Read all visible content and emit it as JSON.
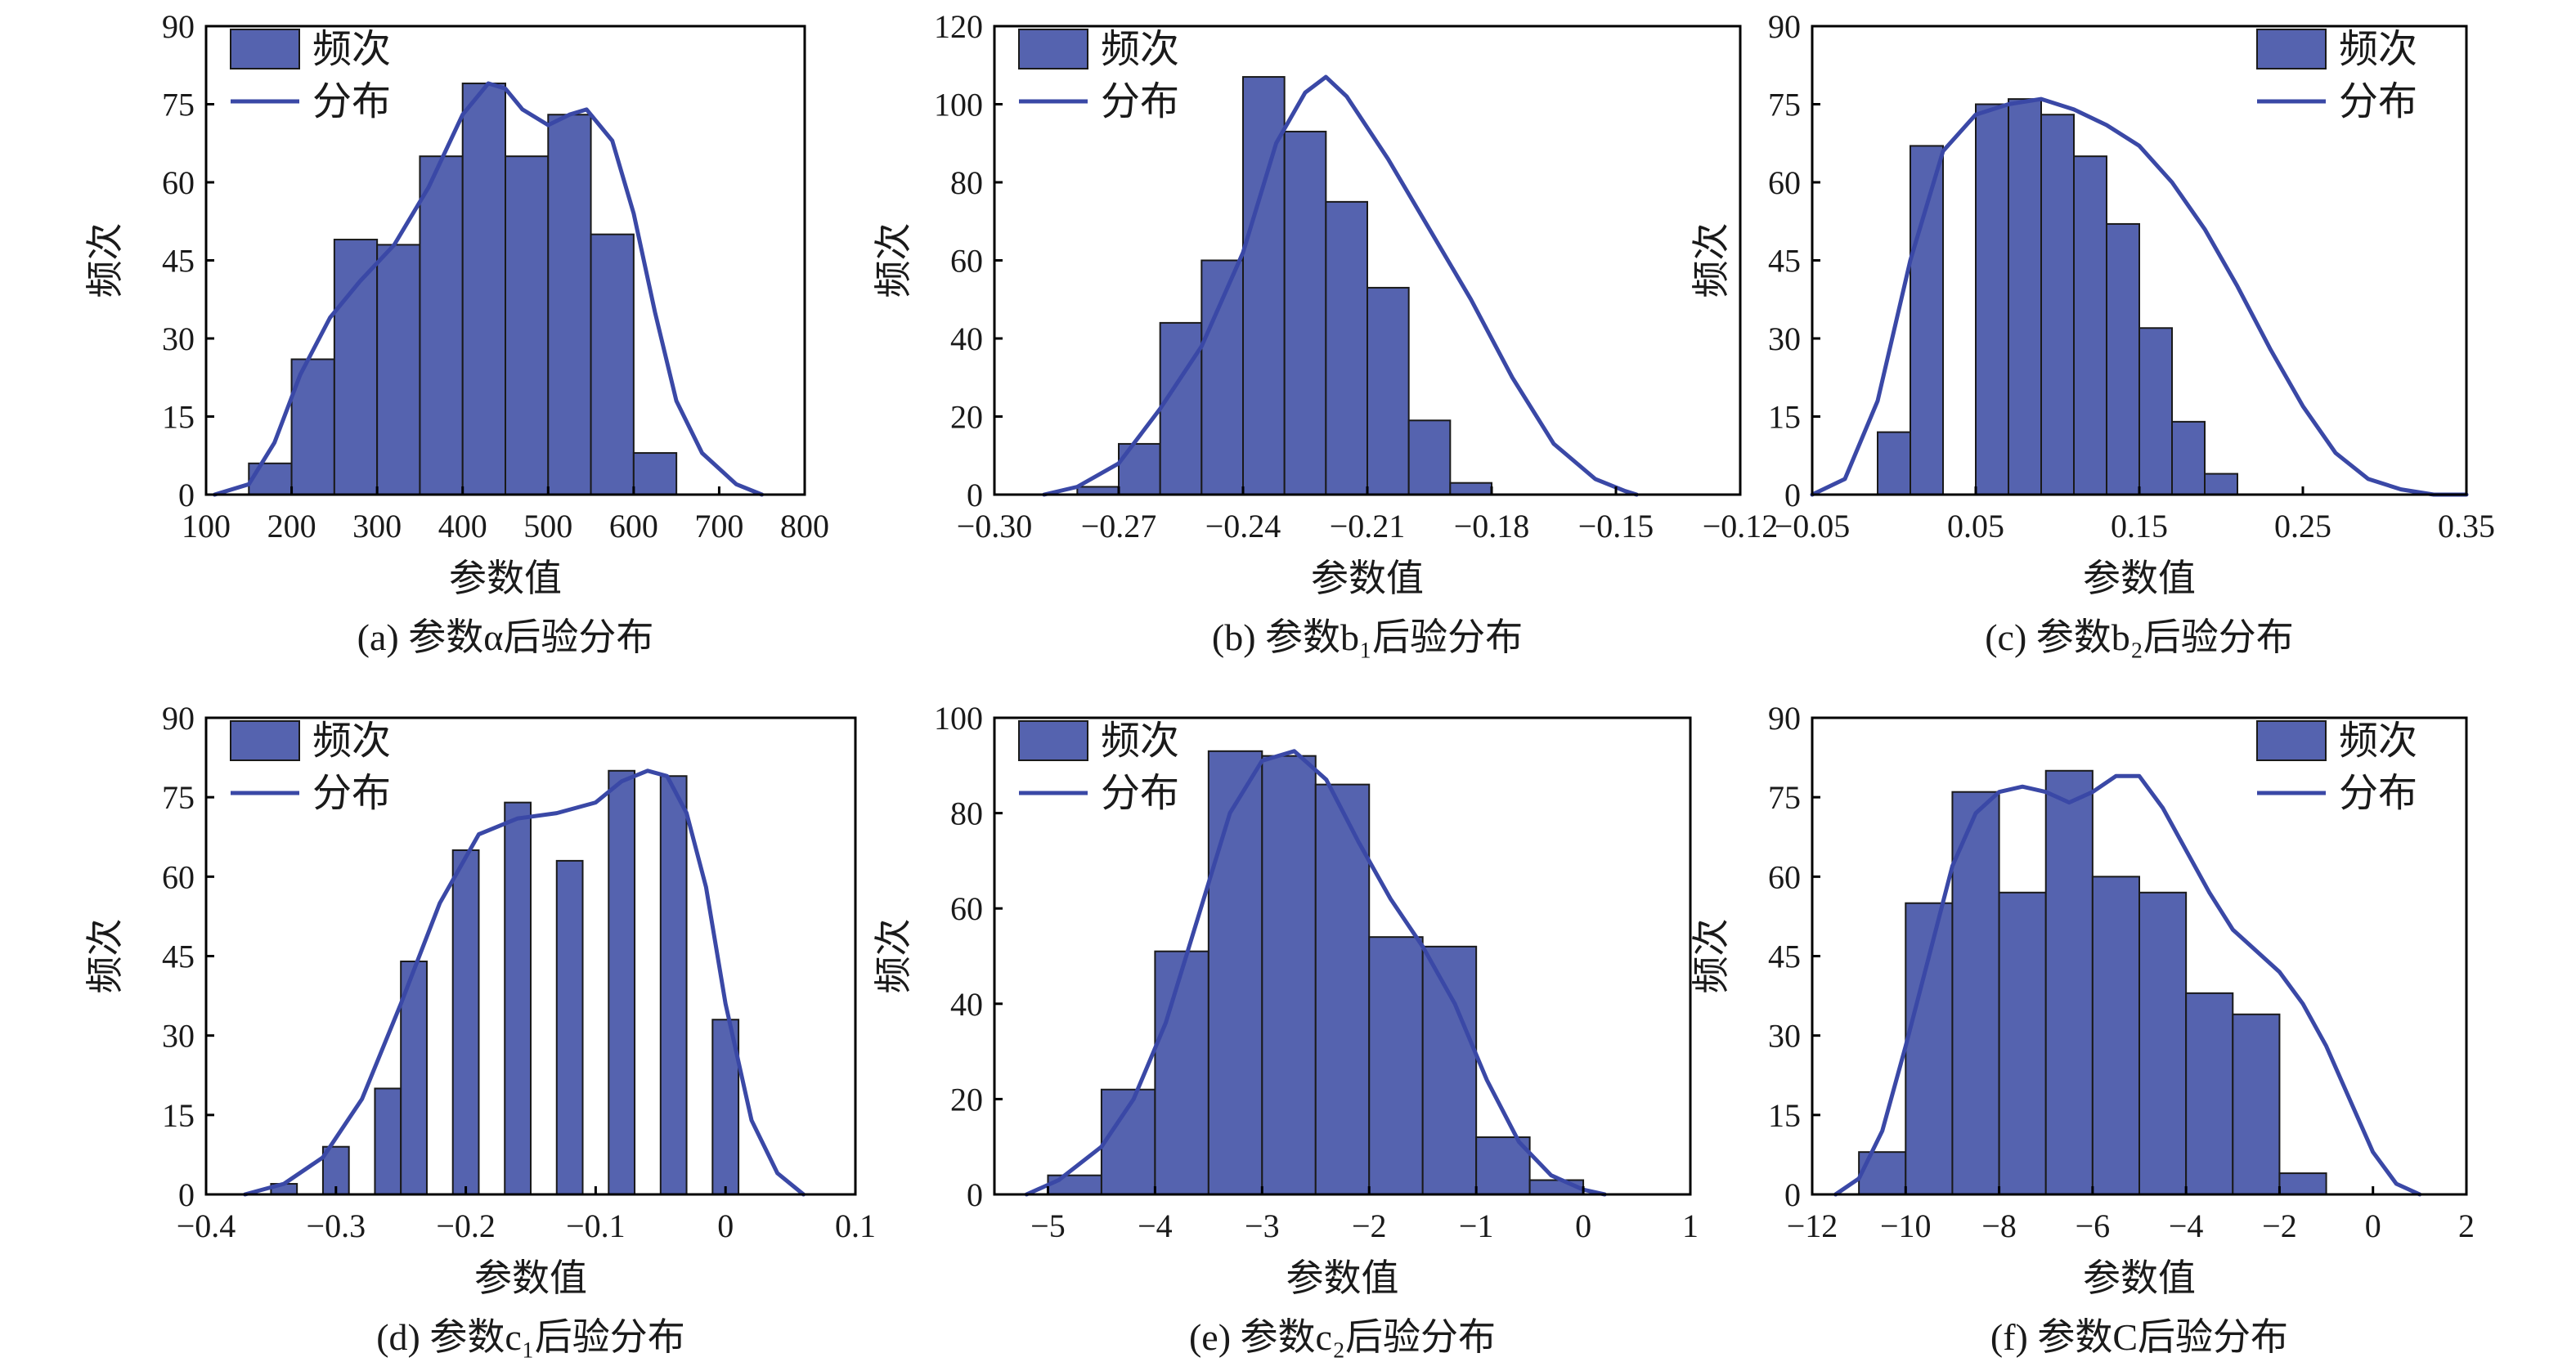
{
  "colors": {
    "bar": "#5563AF",
    "curve": "#3A48A6"
  },
  "chart_data": [
    {
      "type": "bar",
      "panel_caption": "(a) 参数α后验分布",
      "xlabel": "参数值",
      "ylabel": "频次",
      "legend": {
        "bar_label": "频次",
        "curve_label": "分布",
        "position": "top-left"
      },
      "xlim": [
        100,
        800
      ],
      "ylim": [
        0,
        90
      ],
      "x_ticks": [
        100,
        200,
        300,
        400,
        500,
        600,
        700,
        800
      ],
      "x_tick_labels": [
        "100",
        "200",
        "300",
        "400",
        "500",
        "600",
        "700",
        "800"
      ],
      "y_ticks": [
        0,
        15,
        30,
        45,
        60,
        75,
        90
      ],
      "y_tick_labels": [
        "0",
        "15",
        "30",
        "45",
        "60",
        "75",
        "90"
      ],
      "bin_edges": [
        150,
        200,
        250,
        300,
        350,
        400,
        450,
        500,
        550,
        600,
        650,
        700
      ],
      "values": [
        6,
        26,
        49,
        48,
        65,
        79,
        65,
        73,
        50,
        8,
        0
      ],
      "curve": {
        "x": [
          110,
          150,
          180,
          210,
          245,
          280,
          320,
          360,
          400,
          430,
          450,
          470,
          500,
          525,
          545,
          575,
          600,
          625,
          650,
          680,
          720,
          750
        ],
        "y": [
          0,
          2,
          10,
          23,
          34,
          41,
          48,
          59,
          73,
          79,
          78,
          74,
          71,
          73,
          74,
          68,
          54,
          35,
          18,
          8,
          2,
          0
        ]
      }
    },
    {
      "type": "bar",
      "panel_caption": "(b) 参数b₁后验分布",
      "xlabel": "参数值",
      "ylabel": "频次",
      "legend": {
        "bar_label": "频次",
        "curve_label": "分布",
        "position": "top-left"
      },
      "xlim": [
        -0.3,
        -0.12
      ],
      "ylim": [
        0,
        120
      ],
      "x_ticks": [
        -0.3,
        -0.27,
        -0.24,
        -0.21,
        -0.18,
        -0.15,
        -0.12
      ],
      "x_tick_labels": [
        "−0.30",
        "−0.27",
        "−0.24",
        "−0.21",
        "−0.18",
        "−0.15",
        "−0.12"
      ],
      "y_ticks": [
        0,
        20,
        40,
        60,
        80,
        100,
        120
      ],
      "y_tick_labels": [
        "0",
        "20",
        "40",
        "60",
        "80",
        "100",
        "120"
      ],
      "bin_edges": [
        -0.29,
        -0.28,
        -0.27,
        -0.26,
        -0.25,
        -0.24,
        -0.23,
        -0.22,
        -0.21,
        -0.2,
        -0.19,
        -0.18,
        -0.17,
        -0.16,
        -0.15,
        -0.14
      ],
      "values": [
        0,
        2,
        13,
        44,
        60,
        107,
        93,
        75,
        53,
        19,
        3,
        0,
        0,
        0,
        0
      ],
      "curve": {
        "x": [
          -0.288,
          -0.28,
          -0.27,
          -0.26,
          -0.25,
          -0.24,
          -0.232,
          -0.225,
          -0.22,
          -0.215,
          -0.205,
          -0.195,
          -0.185,
          -0.175,
          -0.165,
          -0.155,
          -0.148,
          -0.145
        ],
        "y": [
          0,
          2,
          8,
          22,
          38,
          62,
          90,
          103,
          107,
          102,
          86,
          68,
          50,
          30,
          13,
          4,
          1,
          0
        ]
      }
    },
    {
      "type": "bar",
      "panel_caption": "(c) 参数b₂后验分布",
      "xlabel": "参数值",
      "ylabel": "频次",
      "legend": {
        "bar_label": "频次",
        "curve_label": "分布",
        "position": "top-right"
      },
      "xlim": [
        -0.05,
        0.35
      ],
      "ylim": [
        0,
        90
      ],
      "x_ticks": [
        -0.05,
        0.05,
        0.15,
        0.25,
        0.35
      ],
      "x_tick_labels": [
        "−0.05",
        "0.05",
        "0.15",
        "0.25",
        "0.35"
      ],
      "y_ticks": [
        0,
        15,
        30,
        45,
        60,
        75,
        90
      ],
      "y_tick_labels": [
        "0",
        "15",
        "30",
        "45",
        "60",
        "75",
        "90"
      ],
      "bin_edges": [
        -0.05,
        -0.03,
        -0.01,
        0.01,
        0.03,
        0.05,
        0.07,
        0.09,
        0.11,
        0.13,
        0.15,
        0.17,
        0.19,
        0.21,
        0.23,
        0.25,
        0.27,
        0.29,
        0.31,
        0.33,
        0.35
      ],
      "values": [
        0,
        0,
        12,
        67,
        0,
        75,
        76,
        73,
        65,
        52,
        32,
        14,
        4,
        0,
        0,
        0,
        0,
        0,
        0,
        0
      ],
      "curve": {
        "x": [
          -0.05,
          -0.03,
          -0.01,
          0.01,
          0.03,
          0.05,
          0.07,
          0.09,
          0.11,
          0.13,
          0.15,
          0.17,
          0.19,
          0.21,
          0.23,
          0.25,
          0.27,
          0.29,
          0.31,
          0.33,
          0.35
        ],
        "y": [
          0,
          3,
          18,
          45,
          66,
          73,
          75,
          76,
          74,
          71,
          67,
          60,
          51,
          40,
          28,
          17,
          8,
          3,
          1,
          0,
          0
        ]
      }
    },
    {
      "type": "bar",
      "panel_caption": "(d) 参数c₁后验分布",
      "xlabel": "参数值",
      "ylabel": "频次",
      "legend": {
        "bar_label": "频次",
        "curve_label": "分布",
        "position": "top-left"
      },
      "xlim": [
        -0.4,
        0.1
      ],
      "ylim": [
        0,
        90
      ],
      "x_ticks": [
        -0.4,
        -0.3,
        -0.2,
        -0.1,
        0,
        0.1
      ],
      "x_tick_labels": [
        "−0.4",
        "−0.3",
        "−0.2",
        "−0.1",
        "0",
        "0.1"
      ],
      "y_ticks": [
        0,
        15,
        30,
        45,
        60,
        75,
        90
      ],
      "y_tick_labels": [
        "0",
        "15",
        "30",
        "45",
        "60",
        "75",
        "90"
      ],
      "bin_edges": [
        -0.39,
        -0.37,
        -0.35,
        -0.33,
        -0.31,
        -0.29,
        -0.27,
        -0.25,
        -0.23,
        -0.21,
        -0.19,
        -0.17,
        -0.15,
        -0.13,
        -0.11,
        -0.09,
        -0.07,
        -0.05,
        -0.03,
        -0.01,
        0.01,
        0.03
      ],
      "values": [
        0,
        0,
        2,
        0,
        9,
        0,
        20,
        44,
        0,
        65,
        0,
        74,
        0,
        63,
        0,
        80,
        0,
        79,
        0,
        33,
        0
      ],
      "curve": {
        "x": [
          -0.37,
          -0.34,
          -0.31,
          -0.28,
          -0.25,
          -0.22,
          -0.19,
          -0.16,
          -0.13,
          -0.1,
          -0.08,
          -0.06,
          -0.045,
          -0.03,
          -0.015,
          0,
          0.02,
          0.04,
          0.06
        ],
        "y": [
          0,
          2,
          7,
          18,
          36,
          55,
          68,
          71,
          72,
          74,
          78,
          80,
          79,
          72,
          58,
          36,
          14,
          4,
          0
        ]
      }
    },
    {
      "type": "bar",
      "panel_caption": "(e) 参数c₂后验分布",
      "xlabel": "参数值",
      "ylabel": "频次",
      "legend": {
        "bar_label": "频次",
        "curve_label": "分布",
        "position": "top-left"
      },
      "xlim": [
        -5.5,
        1
      ],
      "ylim": [
        0,
        100
      ],
      "x_ticks": [
        -5,
        -4,
        -3,
        -2,
        -1,
        0,
        1
      ],
      "x_tick_labels": [
        "−5",
        "−4",
        "−3",
        "−2",
        "−1",
        "0",
        "1"
      ],
      "y_ticks": [
        0,
        20,
        40,
        60,
        80,
        100
      ],
      "y_tick_labels": [
        "0",
        "20",
        "40",
        "60",
        "80",
        "100"
      ],
      "bin_edges": [
        -5.0,
        -4.5,
        -4.0,
        -3.5,
        -3.0,
        -2.5,
        -2.0,
        -1.5,
        -1.0,
        -0.5,
        0.0
      ],
      "values": [
        4,
        22,
        51,
        93,
        92,
        86,
        54,
        52,
        12,
        3
      ],
      "curve": {
        "x": [
          -5.2,
          -4.9,
          -4.5,
          -4.2,
          -3.9,
          -3.6,
          -3.3,
          -3.0,
          -2.7,
          -2.4,
          -2.1,
          -1.8,
          -1.5,
          -1.2,
          -0.9,
          -0.6,
          -0.3,
          0.0,
          0.2
        ],
        "y": [
          0,
          3,
          10,
          20,
          36,
          58,
          80,
          91,
          93,
          87,
          74,
          62,
          52,
          40,
          24,
          11,
          4,
          1,
          0
        ]
      }
    },
    {
      "type": "bar",
      "panel_caption": "(f) 参数C后验分布",
      "xlabel": "参数值",
      "ylabel": "频次",
      "legend": {
        "bar_label": "频次",
        "curve_label": "分布",
        "position": "top-right"
      },
      "xlim": [
        -12,
        2
      ],
      "ylim": [
        0,
        90
      ],
      "x_ticks": [
        -12,
        -10,
        -8,
        -6,
        -4,
        -2,
        0,
        2
      ],
      "x_tick_labels": [
        "−12",
        "−10",
        "−8",
        "−6",
        "−4",
        "−2",
        "0",
        "2"
      ],
      "y_ticks": [
        0,
        15,
        30,
        45,
        60,
        75,
        90
      ],
      "y_tick_labels": [
        "0",
        "15",
        "30",
        "45",
        "60",
        "75",
        "90"
      ],
      "bin_edges": [
        -11.0,
        -10.0,
        -9.0,
        -8.0,
        -7.0,
        -6.0,
        -5.0,
        -4.0,
        -3.0,
        -2.0,
        -1.0,
        0.0,
        1.0
      ],
      "values": [
        8,
        55,
        76,
        57,
        80,
        60,
        57,
        38,
        34,
        4,
        0,
        0
      ],
      "curve": {
        "x": [
          -11.5,
          -11.0,
          -10.5,
          -10.0,
          -9.5,
          -9.0,
          -8.5,
          -8.0,
          -7.5,
          -7.0,
          -6.5,
          -6.0,
          -5.5,
          -5.0,
          -4.5,
          -4.0,
          -3.5,
          -3.0,
          -2.5,
          -2.0,
          -1.5,
          -1.0,
          -0.5,
          0.0,
          0.5,
          1.0
        ],
        "y": [
          0,
          3,
          12,
          28,
          45,
          62,
          72,
          76,
          77,
          76,
          74,
          76,
          79,
          79,
          73,
          65,
          57,
          50,
          46,
          42,
          36,
          28,
          18,
          8,
          2,
          0
        ]
      }
    }
  ]
}
